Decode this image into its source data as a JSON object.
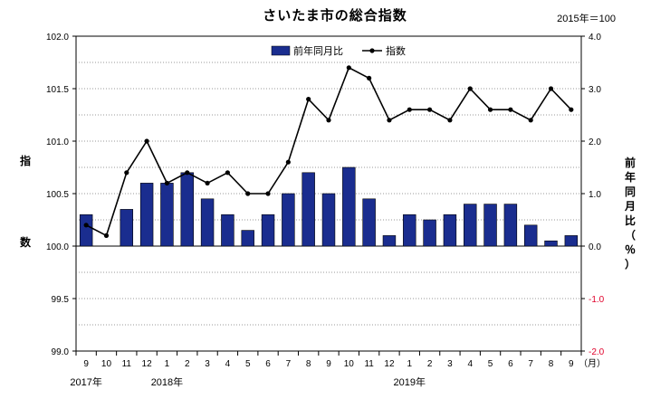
{
  "chart_data": {
    "type": "bar+line",
    "title": "さいたま市の総合指数",
    "note": "2015年＝100",
    "categories": [
      "9",
      "10",
      "11",
      "12",
      "1",
      "2",
      "3",
      "4",
      "5",
      "6",
      "7",
      "8",
      "9",
      "10",
      "11",
      "12",
      "1",
      "2",
      "3",
      "4",
      "5",
      "6",
      "7",
      "8",
      "9"
    ],
    "x_unit": "（月）",
    "year_labels": [
      "2017年",
      "2018年",
      "2019年"
    ],
    "series": [
      {
        "name": "前年同月比",
        "type": "bar",
        "axis": "right",
        "color": "#1a2d8f",
        "values": [
          0.6,
          0.0,
          0.7,
          1.2,
          1.2,
          1.4,
          0.9,
          0.6,
          0.3,
          0.6,
          1.0,
          1.4,
          1.0,
          1.5,
          0.9,
          0.2,
          0.6,
          0.5,
          0.6,
          0.8,
          0.8,
          0.8,
          0.4,
          0.1,
          0.2
        ]
      },
      {
        "name": "指数",
        "type": "line",
        "axis": "left",
        "color": "#000000",
        "values": [
          100.2,
          100.1,
          100.7,
          101.0,
          100.6,
          100.7,
          100.6,
          100.7,
          100.5,
          100.5,
          100.8,
          101.4,
          101.2,
          101.7,
          101.6,
          101.2,
          101.3,
          101.3,
          101.2,
          101.5,
          101.3,
          101.3,
          101.2,
          101.5,
          101.3
        ]
      }
    ],
    "y_left": {
      "label": "指数",
      "ylim": [
        99.0,
        102.0
      ],
      "ticks": [
        "102.0",
        "101.5",
        "101.0",
        "100.5",
        "100.0",
        "99.5",
        "99.0"
      ]
    },
    "y_right": {
      "label": "前年同月比（％）",
      "ylim": [
        -2.0,
        4.0
      ],
      "ticks": [
        "4.0",
        "3.0",
        "2.0",
        "1.0",
        "0.0",
        "-1.0",
        "-2.0"
      ]
    },
    "legend_position": "top-center",
    "grid": true
  }
}
